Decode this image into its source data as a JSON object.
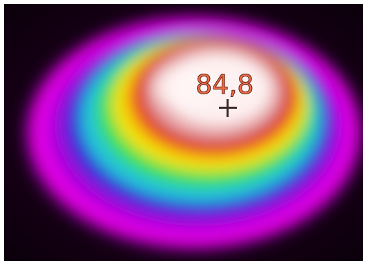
{
  "thermal_image": {
    "spot_reading": "84,8",
    "palette": [
      "#fff4f4",
      "#e9b0b3",
      "#cf2a2a",
      "#f56a15",
      "#f7e100",
      "#3be04d",
      "#20c9d6",
      "#2e2bd8",
      "#a000d8",
      "#f000f0",
      "#160016"
    ]
  }
}
